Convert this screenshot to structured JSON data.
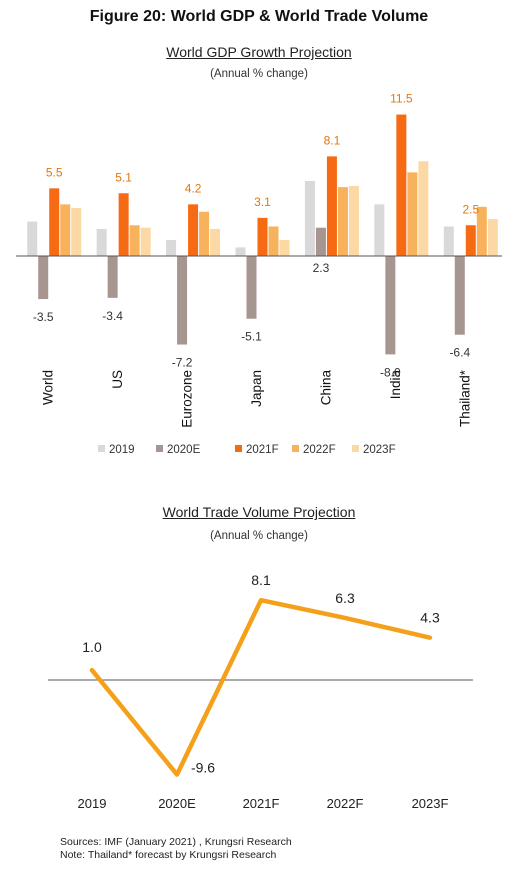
{
  "figure_title": "Figure 20:  World GDP & World Trade Volume",
  "sources": "Sources: IMF (January 2021) , Krungsri Research",
  "note": "Note:  Thailand* forecast by Krungsri Research",
  "chart_data": [
    {
      "type": "bar",
      "title": "World GDP Growth Projection",
      "subtitle": "(Annual % change)",
      "categories": [
        "World",
        "US",
        "Eurozone",
        "Japan",
        "China",
        "India",
        "Thailand*"
      ],
      "series": [
        {
          "name": "2019",
          "color": "#d9d9d9",
          "values": [
            2.8,
            2.2,
            1.3,
            0.7,
            6.1,
            4.2,
            2.4
          ]
        },
        {
          "name": "2020E",
          "color": "#a79590",
          "values": [
            -3.5,
            -3.4,
            -7.2,
            -5.1,
            2.3,
            -8.0,
            -6.4
          ]
        },
        {
          "name": "2021F",
          "color": "#f56a12",
          "values": [
            5.5,
            5.1,
            4.2,
            3.1,
            8.1,
            11.5,
            2.5
          ]
        },
        {
          "name": "2022F",
          "color": "#f9b25c",
          "values": [
            4.2,
            2.5,
            3.6,
            2.4,
            5.6,
            6.8,
            4.0
          ]
        },
        {
          "name": "2023F",
          "color": "#fcd9a4",
          "values": [
            3.9,
            2.3,
            2.2,
            1.3,
            5.7,
            7.7,
            3.0
          ]
        }
      ],
      "data_labels": [
        {
          "category": "World",
          "series": "2021F",
          "value": "5.5"
        },
        {
          "category": "World",
          "series": "2020E",
          "value": "-3.5"
        },
        {
          "category": "US",
          "series": "2021F",
          "value": "5.1"
        },
        {
          "category": "US",
          "series": "2020E",
          "value": "-3.4"
        },
        {
          "category": "Eurozone",
          "series": "2021F",
          "value": "4.2"
        },
        {
          "category": "Eurozone",
          "series": "2020E",
          "value": "-7.2"
        },
        {
          "category": "Japan",
          "series": "2021F",
          "value": "3.1"
        },
        {
          "category": "Japan",
          "series": "2020E",
          "value": "-5.1"
        },
        {
          "category": "China",
          "series": "2021F",
          "value": "8.1"
        },
        {
          "category": "China",
          "series": "2020E",
          "value": "2.3"
        },
        {
          "category": "India",
          "series": "2021F",
          "value": "11.5"
        },
        {
          "category": "India",
          "series": "2020E",
          "value": "-8.0"
        },
        {
          "category": "Thailand*",
          "series": "2021F",
          "value": "2.5"
        },
        {
          "category": "Thailand*",
          "series": "2020E",
          "value": "-6.4"
        }
      ],
      "ylim": [
        -9.5,
        12.5
      ],
      "grid": false,
      "legend": "bottom"
    },
    {
      "type": "line",
      "title": "World Trade Volume Projection",
      "subtitle": "(Annual % change)",
      "x": [
        "2019",
        "2020E",
        "2021F",
        "2022F",
        "2023F"
      ],
      "series": [
        {
          "color": "#f5a01a",
          "values": [
            1.0,
            -9.6,
            8.1,
            6.3,
            4.3
          ]
        }
      ],
      "labels": [
        "1.0",
        "-9.6",
        "8.1",
        "6.3",
        "4.3"
      ],
      "ylim": [
        -10.5,
        10
      ],
      "grid": false
    }
  ]
}
